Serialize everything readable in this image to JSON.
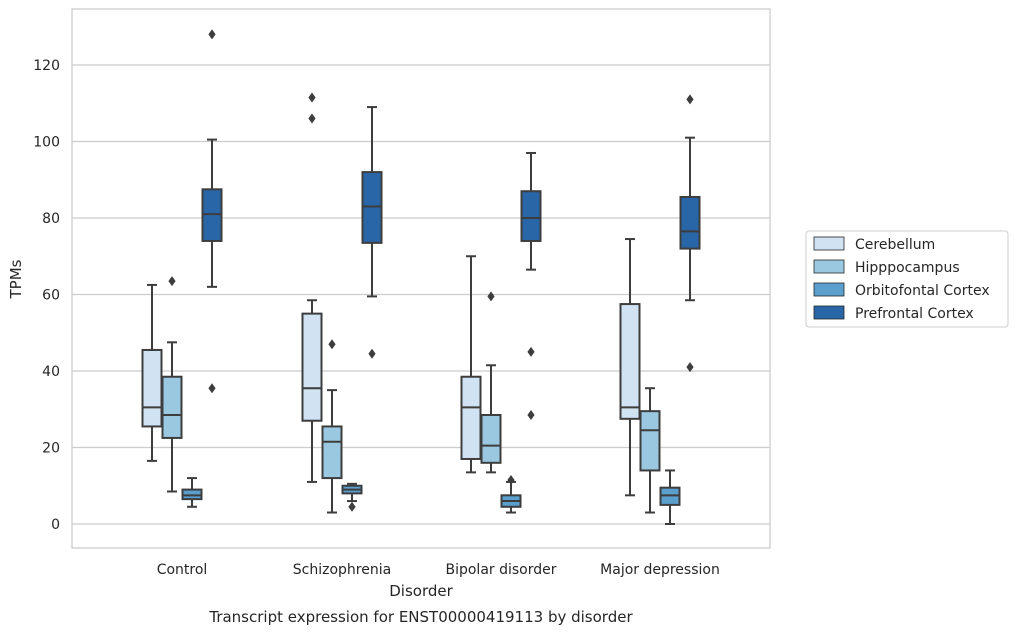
{
  "caption": "Transcript expression for ENST00000419113 by disorder",
  "colors": {
    "Cerebellum": "#d1e2f2",
    "Hipppocampus": "#9ac8e0",
    "Orbitofontal Cortex": "#5a9fcd",
    "Prefrontal Cortex": "#2966a8",
    "line": "#3d3d3d",
    "grid": "#cccccc",
    "frame": "#cccccc"
  },
  "chart_data": {
    "type": "box",
    "title": "",
    "xlabel": "Disorder",
    "ylabel": "TPMs",
    "ylim": [
      -6,
      135
    ],
    "yticks": [
      0,
      20,
      40,
      60,
      80,
      100,
      120
    ],
    "grid": "horizontal",
    "legend_position": "right",
    "categories": [
      "Control",
      "Schizophrenia",
      "Bipolar disorder",
      "Major depression"
    ],
    "series": [
      {
        "name": "Cerebellum",
        "boxes": [
          {
            "whislo": 16.5,
            "q1": 25.5,
            "med": 30.5,
            "q3": 45.5,
            "whishi": 62.5,
            "fliers": []
          },
          {
            "whislo": 11,
            "q1": 27,
            "med": 35.5,
            "q3": 55,
            "whishi": 58.5,
            "fliers": [
              106,
              111.5
            ]
          },
          {
            "whislo": 13.5,
            "q1": 17,
            "med": 30.5,
            "q3": 38.5,
            "whishi": 70,
            "fliers": []
          },
          {
            "whislo": 7.5,
            "q1": 27.5,
            "med": 30.5,
            "q3": 57.5,
            "whishi": 74.5,
            "fliers": []
          }
        ]
      },
      {
        "name": "Hipppocampus",
        "boxes": [
          {
            "whislo": 8.5,
            "q1": 22.5,
            "med": 28.5,
            "q3": 38.5,
            "whishi": 47.5,
            "fliers": [
              63.5
            ]
          },
          {
            "whislo": 3,
            "q1": 12,
            "med": 21.5,
            "q3": 25.5,
            "whishi": 35,
            "fliers": [
              47
            ]
          },
          {
            "whislo": 13.5,
            "q1": 16,
            "med": 20.5,
            "q3": 28.5,
            "whishi": 41.5,
            "fliers": [
              59.5
            ]
          },
          {
            "whislo": 3,
            "q1": 14,
            "med": 24.5,
            "q3": 29.5,
            "whishi": 35.5,
            "fliers": []
          }
        ]
      },
      {
        "name": "Orbitofontal Cortex",
        "boxes": [
          {
            "whislo": 4.5,
            "q1": 6.5,
            "med": 7.5,
            "q3": 9,
            "whishi": 12,
            "fliers": []
          },
          {
            "whislo": 6,
            "q1": 8,
            "med": 9,
            "q3": 10,
            "whishi": 10.5,
            "fliers": [
              4.5
            ]
          },
          {
            "whislo": 3,
            "q1": 4.5,
            "med": 6,
            "q3": 7.5,
            "whishi": 11,
            "fliers": [
              11.5
            ]
          },
          {
            "whislo": 0,
            "q1": 5,
            "med": 7.5,
            "q3": 9.5,
            "whishi": 14,
            "fliers": []
          }
        ]
      },
      {
        "name": "Prefrontal Cortex",
        "boxes": [
          {
            "whislo": 62,
            "q1": 74,
            "med": 81,
            "q3": 87.5,
            "whishi": 100.5,
            "fliers": [
              35.5,
              128
            ]
          },
          {
            "whislo": 59.5,
            "q1": 73.5,
            "med": 83,
            "q3": 92,
            "whishi": 109,
            "fliers": [
              44.5
            ]
          },
          {
            "whislo": 66.5,
            "q1": 74,
            "med": 80,
            "q3": 87,
            "whishi": 97,
            "fliers": [
              28.5,
              45
            ]
          },
          {
            "whislo": 58.5,
            "q1": 72,
            "med": 76.5,
            "q3": 85.5,
            "whishi": 101,
            "fliers": [
              41,
              111
            ]
          }
        ]
      }
    ]
  }
}
